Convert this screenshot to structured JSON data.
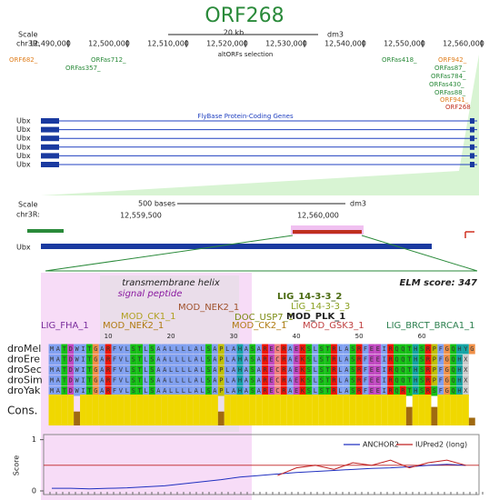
{
  "title": "ORF268",
  "overview": {
    "scale_label": "Scale",
    "chrom": "chr3R:",
    "scale_bar": "20 kb",
    "assembly": "dm3",
    "positions": [
      "12,490,000",
      "12,500,000",
      "12,510,000",
      "12,520,000",
      "12,530,000",
      "12,540,000",
      "12,550,000",
      "12,560,000"
    ],
    "track_label": "altORFs selection",
    "orfs": [
      "ORF682_",
      "ORFas712_",
      "ORFas357_",
      "ORFas418_",
      "ORF942_",
      "ORFas87_",
      "ORFas784_",
      "ORFas430_",
      "ORFas88_",
      "ORF941_",
      "ORF268"
    ],
    "gene_track_label": "FlyBase Protein-Coding Genes",
    "genes": [
      "Ubx",
      "Ubx",
      "Ubx",
      "Ubx",
      "Ubx",
      "Ubx"
    ]
  },
  "zoom": {
    "scale_label": "Scale",
    "chrom": "chr3R:",
    "scale_bar": "500 bases",
    "assembly": "dm3",
    "positions": [
      "12,559,500",
      "12,560,000"
    ],
    "genes": [
      "Ubx"
    ]
  },
  "alignment": {
    "annotations": [
      "transmembrane helix",
      "signal peptide"
    ],
    "elm_score": "ELM score: 347",
    "motifs": [
      "LIG_FHA_1",
      "MOD_NEK2_1",
      "MOD_NEK2_1",
      "MOD_CK1_1",
      "DOC_USP7_1",
      "MOD_CK2_1",
      "LIG_14-3-3_2",
      "LIG_14-3-3_3",
      "MOD_PLK_1",
      "MOD_GSK3_1",
      "LIG_BRCT_BRCA1_1"
    ],
    "positions": [
      10,
      20,
      30,
      40,
      50,
      60
    ],
    "species": [
      "droMel",
      "droEre",
      "droSec",
      "droSim",
      "droYak"
    ],
    "sequences": [
      "MATDWITGARFVLSTLSAALLLLALSAPLAHASARECRAEKSLSTRLASRFEEIRQQTHSRPFGQHYG",
      "MATDWITGARFVLSTLSAALLLLALSAPLAHASARECRAEKSLSTRLASRFEEIRQQTHSRPFGQHX",
      "MATDWITGARFVLSTLSAALLLLALSAPLAHASARECRAEKSLSTRLASRFEEIRQQTHSRPFGQHX",
      "MATDWITGARFVLSTLSAALLLLALSAPLAHASARECRAEKSLSTRLASRFEEIRQQTHSRPFGQHX",
      "MATDWITGARFVLSTLSAALLLLALSAPLAHASARECRAEKSLSTRLASRFEEIRQRTHSRSFGQHX"
    ],
    "conservation_label": "Cons.",
    "conservation": [
      1,
      1,
      1,
      1,
      0.45,
      1,
      1,
      1,
      1,
      1,
      1,
      1,
      1,
      1,
      1,
      1,
      1,
      1,
      1,
      1,
      1,
      1,
      1,
      1,
      1,
      1,
      1,
      0.45,
      1,
      1,
      1,
      1,
      1,
      1,
      1,
      1,
      1,
      1,
      1,
      1,
      1,
      1,
      1,
      1,
      1,
      1,
      1,
      1,
      1,
      1,
      1,
      1,
      1,
      1,
      1,
      1,
      1,
      0.6,
      1,
      1,
      1,
      0.6,
      1,
      1,
      1,
      1,
      1,
      0.25
    ]
  },
  "chart_data": {
    "type": "line",
    "ylabel": "Score",
    "x": [
      1,
      4,
      7,
      10,
      13,
      16,
      19,
      22,
      25,
      28,
      31,
      34,
      37,
      40,
      43,
      46,
      49,
      52,
      55,
      58,
      61,
      64,
      67
    ],
    "xlim": [
      1,
      68
    ],
    "ylim": [
      0,
      1.1
    ],
    "yticks": [
      0,
      1
    ],
    "reference_line": 0.5,
    "series": [
      {
        "name": "ANCHOR2",
        "color": "#2030c0",
        "values": [
          0.05,
          0.05,
          0.04,
          0.05,
          0.06,
          0.08,
          0.1,
          0.14,
          0.18,
          0.22,
          0.27,
          0.3,
          0.33,
          0.36,
          0.38,
          0.4,
          0.42,
          0.44,
          0.45,
          0.47,
          0.5,
          0.52,
          0.5
        ]
      },
      {
        "name": "IUPred2 (long)",
        "color": "#c02020",
        "values": [
          null,
          null,
          null,
          null,
          null,
          null,
          null,
          null,
          null,
          null,
          null,
          null,
          0.3,
          0.45,
          0.5,
          0.42,
          0.55,
          0.5,
          0.6,
          0.45,
          0.55,
          0.6,
          0.5
        ]
      }
    ]
  }
}
